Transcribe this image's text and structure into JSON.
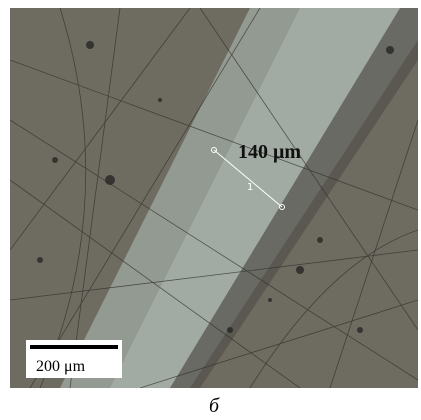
{
  "annotations": {
    "measurement": "140 μm",
    "marker": "1",
    "scale_bar": "200 μm"
  },
  "caption": "б"
}
